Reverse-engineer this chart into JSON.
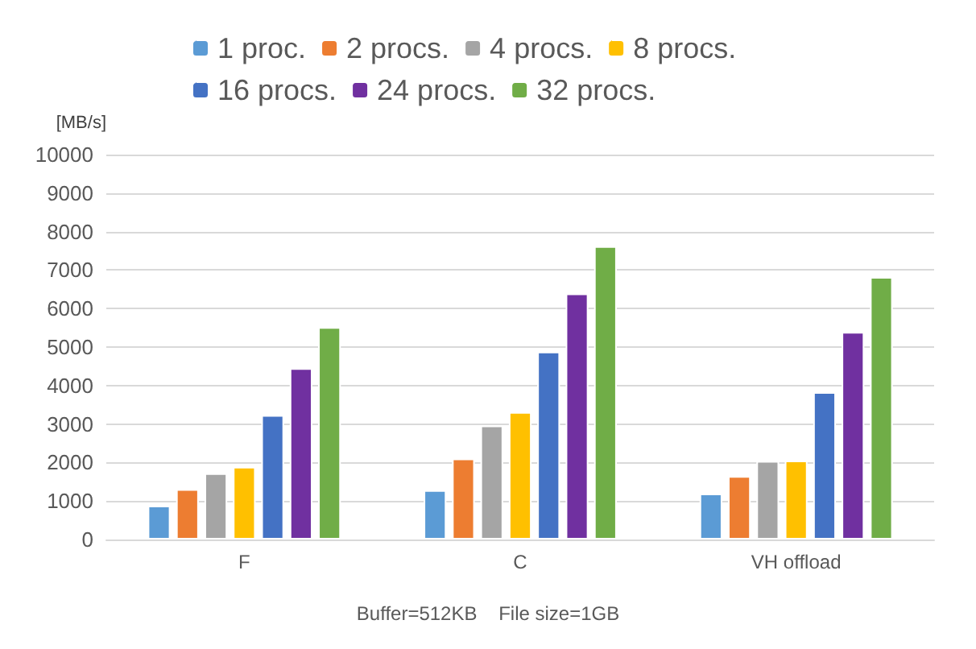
{
  "chart_data": {
    "type": "bar",
    "ylabel": "[MB/s]",
    "categories": [
      "F",
      "C",
      "VH offload"
    ],
    "series": [
      {
        "name": "1 proc.",
        "color": "#5b9bd5",
        "values": [
          880,
          1280,
          1190
        ]
      },
      {
        "name": "2 procs.",
        "color": "#ed7d31",
        "values": [
          1310,
          2100,
          1650
        ]
      },
      {
        "name": "4 procs.",
        "color": "#a5a5a5",
        "values": [
          1720,
          2960,
          2040
        ]
      },
      {
        "name": "8 procs.",
        "color": "#ffc000",
        "values": [
          1890,
          3310,
          2050
        ]
      },
      {
        "name": "16 procs.",
        "color": "#4472c4",
        "values": [
          3230,
          4880,
          3830
        ]
      },
      {
        "name": "24 procs.",
        "color": "#7030a0",
        "values": [
          4450,
          6390,
          5390
        ]
      },
      {
        "name": "32 procs.",
        "color": "#70ad47",
        "values": [
          5520,
          7620,
          6820
        ]
      }
    ],
    "ylim": [
      0,
      10000
    ],
    "yticks": [
      0,
      1000,
      2000,
      3000,
      4000,
      5000,
      6000,
      7000,
      8000,
      9000,
      10000
    ],
    "grid": "y",
    "legend": "top",
    "annotations": [
      "Buffer=512KB    File size=1GB"
    ]
  }
}
